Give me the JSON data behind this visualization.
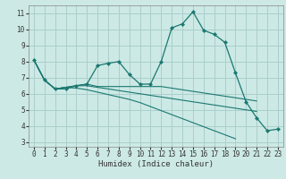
{
  "bg_color": "#cce9e5",
  "grid_color": "#aacfcb",
  "line_color": "#1a7870",
  "marker_color": "#1a7870",
  "xlabel": "Humidex (Indice chaleur)",
  "ylim": [
    2.7,
    11.5
  ],
  "xlim": [
    -0.5,
    23.5
  ],
  "yticks": [
    3,
    4,
    5,
    6,
    7,
    8,
    9,
    10,
    11
  ],
  "xticks": [
    0,
    1,
    2,
    3,
    4,
    5,
    6,
    7,
    8,
    9,
    10,
    11,
    12,
    13,
    14,
    15,
    16,
    17,
    18,
    19,
    20,
    21,
    22,
    23
  ],
  "series": [
    {
      "x": [
        0,
        1,
        2,
        3,
        4,
        5,
        6,
        7,
        8,
        9,
        10,
        11,
        12,
        13,
        14,
        15,
        16,
        17,
        18,
        19,
        20,
        21,
        22,
        23
      ],
      "y": [
        8.1,
        6.85,
        6.3,
        6.3,
        6.5,
        6.6,
        7.75,
        7.9,
        8.0,
        7.2,
        6.6,
        6.6,
        8.0,
        10.1,
        10.35,
        11.1,
        9.95,
        9.7,
        9.2,
        7.3,
        5.5,
        4.5,
        3.7,
        3.8
      ],
      "marker": true
    },
    {
      "x": [
        0,
        1,
        2,
        3,
        4,
        5,
        6,
        7,
        8,
        9,
        10,
        11,
        12,
        13,
        14,
        15,
        16,
        17,
        18,
        19,
        20,
        21
      ],
      "y": [
        8.1,
        6.85,
        6.3,
        6.4,
        6.5,
        6.6,
        6.45,
        6.45,
        6.45,
        6.45,
        6.45,
        6.45,
        6.45,
        6.35,
        6.25,
        6.15,
        6.05,
        5.95,
        5.85,
        5.75,
        5.65,
        5.55
      ],
      "marker": false
    },
    {
      "x": [
        0,
        1,
        2,
        3,
        4,
        5,
        6,
        7,
        8,
        9,
        10,
        11,
        12,
        13,
        14,
        15,
        16,
        17,
        18,
        19,
        20,
        21
      ],
      "y": [
        8.1,
        6.85,
        6.3,
        6.4,
        6.5,
        6.5,
        6.4,
        6.3,
        6.2,
        6.1,
        6.0,
        5.9,
        5.8,
        5.7,
        5.6,
        5.5,
        5.4,
        5.3,
        5.2,
        5.1,
        5.0,
        4.9
      ],
      "marker": false
    },
    {
      "x": [
        0,
        1,
        2,
        3,
        4,
        5,
        6,
        7,
        8,
        9,
        10,
        11,
        12,
        13,
        14,
        15,
        16,
        17,
        18,
        19,
        20,
        21,
        22,
        23
      ],
      "y": [
        8.1,
        6.85,
        6.3,
        6.4,
        6.35,
        6.25,
        6.1,
        5.95,
        5.8,
        5.65,
        5.45,
        5.2,
        4.95,
        4.7,
        4.45,
        4.2,
        3.95,
        3.7,
        3.45,
        3.2,
        null,
        null,
        null,
        null
      ],
      "marker": false
    }
  ],
  "title_fontsize": 7,
  "tick_fontsize": 5.5,
  "xlabel_fontsize": 6.5
}
